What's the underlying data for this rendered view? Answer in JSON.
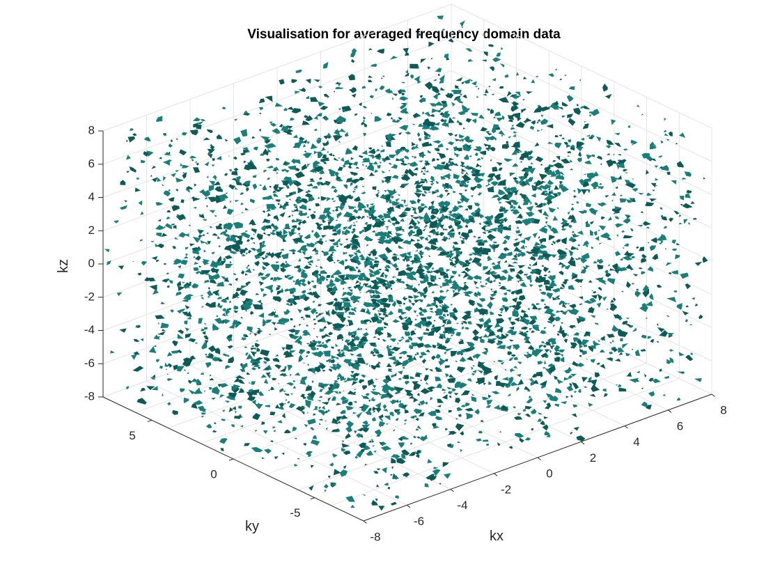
{
  "chart_data": {
    "type": "scatter",
    "title": "Visualisation for averaged frequency domain data",
    "xlabel": "kx",
    "ylabel": "ky",
    "zlabel": "kz",
    "xlim": [
      -8,
      8
    ],
    "ylim": [
      -8,
      8
    ],
    "zlim": [
      -8,
      8
    ],
    "xticks": [
      -8,
      -6,
      -4,
      -2,
      0,
      2,
      4,
      6,
      8
    ],
    "yticks": [
      -5,
      0,
      5
    ],
    "zticks": [
      -8,
      -6,
      -4,
      -2,
      0,
      2,
      4,
      6,
      8
    ],
    "grid": true,
    "series": [
      {
        "rendering": "isosurface",
        "color": "#1a7f7b",
        "shade_color": "#0e5a57",
        "extent": {
          "x": [
            -8,
            8
          ],
          "y": [
            -8,
            8
          ],
          "z": [
            -8,
            8
          ]
        },
        "distribution": "uniform noise blobs filling the cube"
      }
    ]
  }
}
